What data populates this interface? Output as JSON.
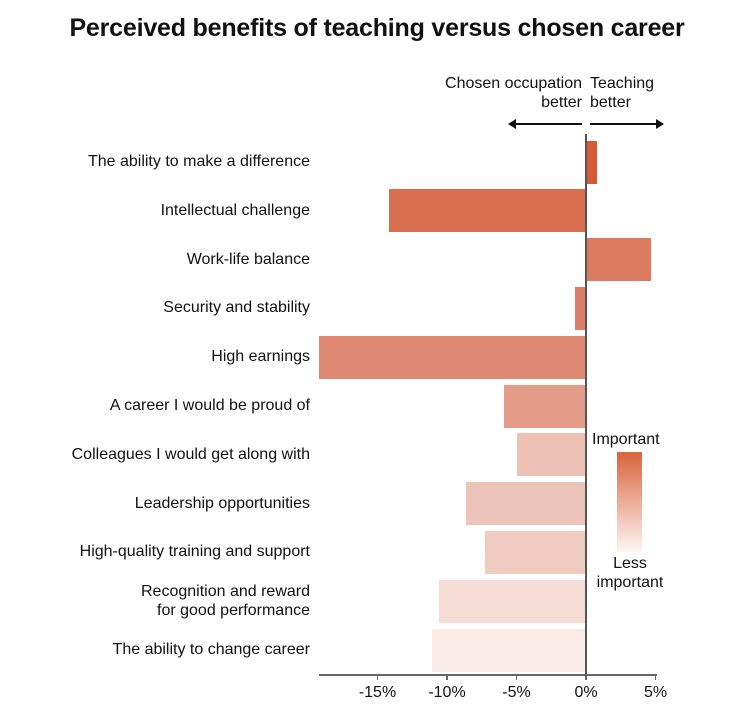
{
  "title": "Perceived benefits of teaching versus chosen career",
  "direction_labels": {
    "left_line1": "Chosen occupation",
    "left_line2": "better",
    "right_line1": "Teaching",
    "right_line2": "better"
  },
  "legend": {
    "top": "Important",
    "bottom_line1": "Less",
    "bottom_line2": "important",
    "gradient_from": "#d9633d",
    "gradient_to": "#fdf6f3"
  },
  "x_ticks": [
    "-15%",
    "-10%",
    "-5%",
    "0%",
    "5%"
  ],
  "chart_data": {
    "type": "bar",
    "orientation": "horizontal",
    "title": "Perceived benefits of teaching versus chosen career",
    "xlabel": "",
    "ylabel": "",
    "xlim": [
      -19.2,
      5
    ],
    "x_tick_values": [
      -15,
      -10,
      -5,
      0,
      5
    ],
    "x_tick_labels": [
      "-15%",
      "-10%",
      "-5%",
      "0%",
      "5%"
    ],
    "grid": false,
    "annotations": [
      "Chosen occupation better (left)",
      "Teaching better (right)"
    ],
    "legend": {
      "type": "color-gradient",
      "top": "Important",
      "bottom": "Less important",
      "position": "right"
    },
    "categories": [
      "The ability to make a difference",
      "Intellectual challenge",
      "Work-life balance",
      "Security and stability",
      "High earnings",
      "A career I would be proud of",
      "Colleagues I would get along with",
      "Leadership opportunities",
      "High-quality training and support",
      "Recognition and reward for good performance",
      "The ability to change career"
    ],
    "values": [
      0.8,
      -14.2,
      4.7,
      -0.8,
      -19.2,
      -5.9,
      -5.0,
      -8.6,
      -7.3,
      -10.6,
      -11.1
    ],
    "colors": [
      "#d65a35",
      "#d96e50",
      "#dc7a60",
      "#dd7f66",
      "#de8872",
      "#e49d88",
      "#eec1b5",
      "#ecc4b9",
      "#efcbc0",
      "#f5ddd5",
      "#f9ece8"
    ]
  },
  "bars": [
    {
      "label": "The ability to make a difference",
      "value": 0.8,
      "color": "#d65a35"
    },
    {
      "label": "Intellectual challenge",
      "value": -14.2,
      "color": "#d96e50"
    },
    {
      "label": "Work-life balance",
      "value": 4.7,
      "color": "#dc7a60"
    },
    {
      "label": "Security and stability",
      "value": -0.8,
      "color": "#dd7f66"
    },
    {
      "label": "High earnings",
      "value": -19.2,
      "color": "#de8872"
    },
    {
      "label": "A career I would be proud of",
      "value": -5.9,
      "color": "#e49d88"
    },
    {
      "label": "Colleagues I would get along with",
      "value": -5.0,
      "color": "#eec1b5"
    },
    {
      "label": "Leadership opportunities",
      "value": -8.6,
      "color": "#ecc4b9"
    },
    {
      "label": "High-quality training and support",
      "value": -7.3,
      "color": "#efcbc0"
    },
    {
      "label_line1": "Recognition and reward",
      "label_line2": "for good performance",
      "value": -10.6,
      "color": "#f5ddd5"
    },
    {
      "label": "The ability to change career",
      "value": -11.1,
      "color": "#f9ece8"
    }
  ]
}
